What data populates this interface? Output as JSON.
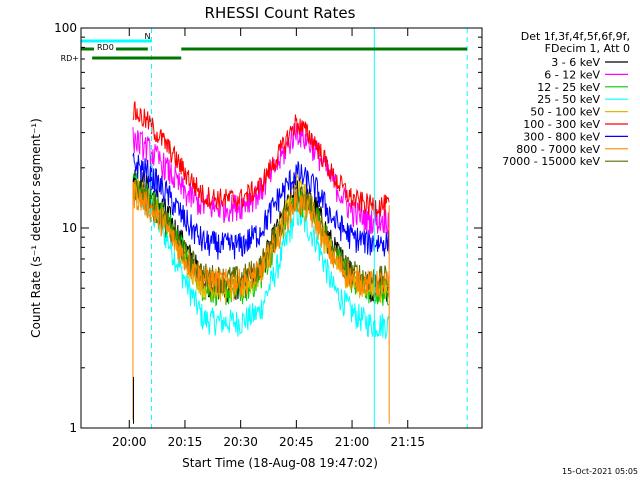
{
  "chart_data": {
    "type": "line",
    "title": "RHESSI Count Rates",
    "xlabel": "Start Time (18-Aug-08 19:47:02)",
    "ylabel": "Count Rate (s⁻¹ detector segment⁻¹)",
    "y_scale": "log",
    "ylim": [
      1,
      100
    ],
    "xlim": [
      "19:47",
      "21:35"
    ],
    "x_ticks": [
      "20:00",
      "20:15",
      "20:30",
      "20:45",
      "21:00",
      "21:15"
    ],
    "y_ticks": [
      "1",
      "10",
      "100"
    ],
    "grid": false,
    "legend_title": [
      "Det 1f,3f,4f,5f,6f,9f,",
      "FDecim 1, Att 0"
    ],
    "legend_placement": "right",
    "x": [
      "20:00",
      "20:05",
      "20:10",
      "20:15",
      "20:20",
      "20:25",
      "20:30",
      "20:35",
      "20:40",
      "20:45",
      "20:50",
      "20:55",
      "21:00",
      "21:05",
      "21:10"
    ],
    "series": [
      {
        "name": "3 - 6 keV",
        "color": "#000000",
        "values": [
          19,
          16,
          12,
          8,
          5.5,
          5,
          5,
          6,
          10,
          16,
          13,
          8,
          6,
          5,
          5
        ]
      },
      {
        "name": "6 - 12 keV",
        "color": "#ff00ff",
        "values": [
          29,
          25,
          20,
          15,
          13,
          12.5,
          13,
          15,
          21,
          31,
          25,
          17,
          12,
          11,
          11
        ]
      },
      {
        "name": "12 - 25 keV",
        "color": "#00cc00",
        "values": [
          18,
          15,
          11,
          7.5,
          5,
          4.8,
          4.8,
          5.5,
          9,
          14,
          12,
          7.5,
          5.5,
          4.8,
          4.8
        ]
      },
      {
        "name": "25 - 50 keV",
        "color": "#00ffff",
        "values": [
          16,
          13,
          9,
          5.5,
          3.5,
          3.4,
          3.4,
          3.8,
          6.5,
          12,
          9,
          5,
          3.8,
          3.3,
          3.3
        ]
      },
      {
        "name": "50 - 100 keV",
        "color": "#ddbb00",
        "values": [
          17,
          14,
          10.5,
          7,
          5.2,
          5,
          5,
          5.8,
          9.5,
          17,
          12,
          7,
          5.5,
          5,
          5
        ]
      },
      {
        "name": "100 - 300 keV",
        "color": "#ff0000",
        "values": [
          40,
          34,
          26,
          19,
          14.5,
          14,
          14,
          16,
          23,
          34,
          27,
          18,
          14,
          13,
          13
        ]
      },
      {
        "name": "300 - 800 keV",
        "color": "#0000ff",
        "values": [
          22,
          19,
          15,
          11,
          8.5,
          8.2,
          8.2,
          9.5,
          14,
          19,
          16,
          11,
          9,
          8.5,
          8.5
        ]
      },
      {
        "name": "800 - 7000 keV",
        "color": "#ff8800",
        "values": [
          15.5,
          13,
          10,
          7,
          5.6,
          5.4,
          5.4,
          6,
          9,
          14,
          11,
          7,
          5.6,
          5.3,
          5.3
        ]
      },
      {
        "name": "7000 - 15000 keV",
        "color": "#556b00",
        "values": [
          17,
          14,
          10.5,
          7.5,
          5.8,
          5.6,
          5.6,
          6.3,
          9.8,
          15,
          12,
          7.5,
          6,
          5.6,
          5.6
        ]
      }
    ],
    "attenuator_bars": [
      {
        "label": "N",
        "color": "#00ffff",
        "start": "19:47",
        "end": "20:06"
      },
      {
        "label": "",
        "color": "#00ffff",
        "start": "21:06",
        "end": "21:31"
      },
      {
        "label": "RD0",
        "color": "#007700",
        "start": "19:47",
        "end": "20:05"
      },
      {
        "label": "",
        "color": "#007700",
        "start": "20:14",
        "end": "21:31"
      },
      {
        "label": "RD+",
        "color": "#007700",
        "start": "19:50",
        "end": "20:14"
      }
    ],
    "vertical_lines": [
      {
        "time": "19:47",
        "color": "#00ffff",
        "style": "solid"
      },
      {
        "time": "20:06",
        "color": "#00ffff",
        "style": "dashed"
      },
      {
        "time": "21:06",
        "color": "#00ffff",
        "style": "solid"
      },
      {
        "time": "21:31",
        "color": "#00ffff",
        "style": "dashed"
      }
    ]
  },
  "footer_timestamp": "15-Oct-2021 05:05"
}
